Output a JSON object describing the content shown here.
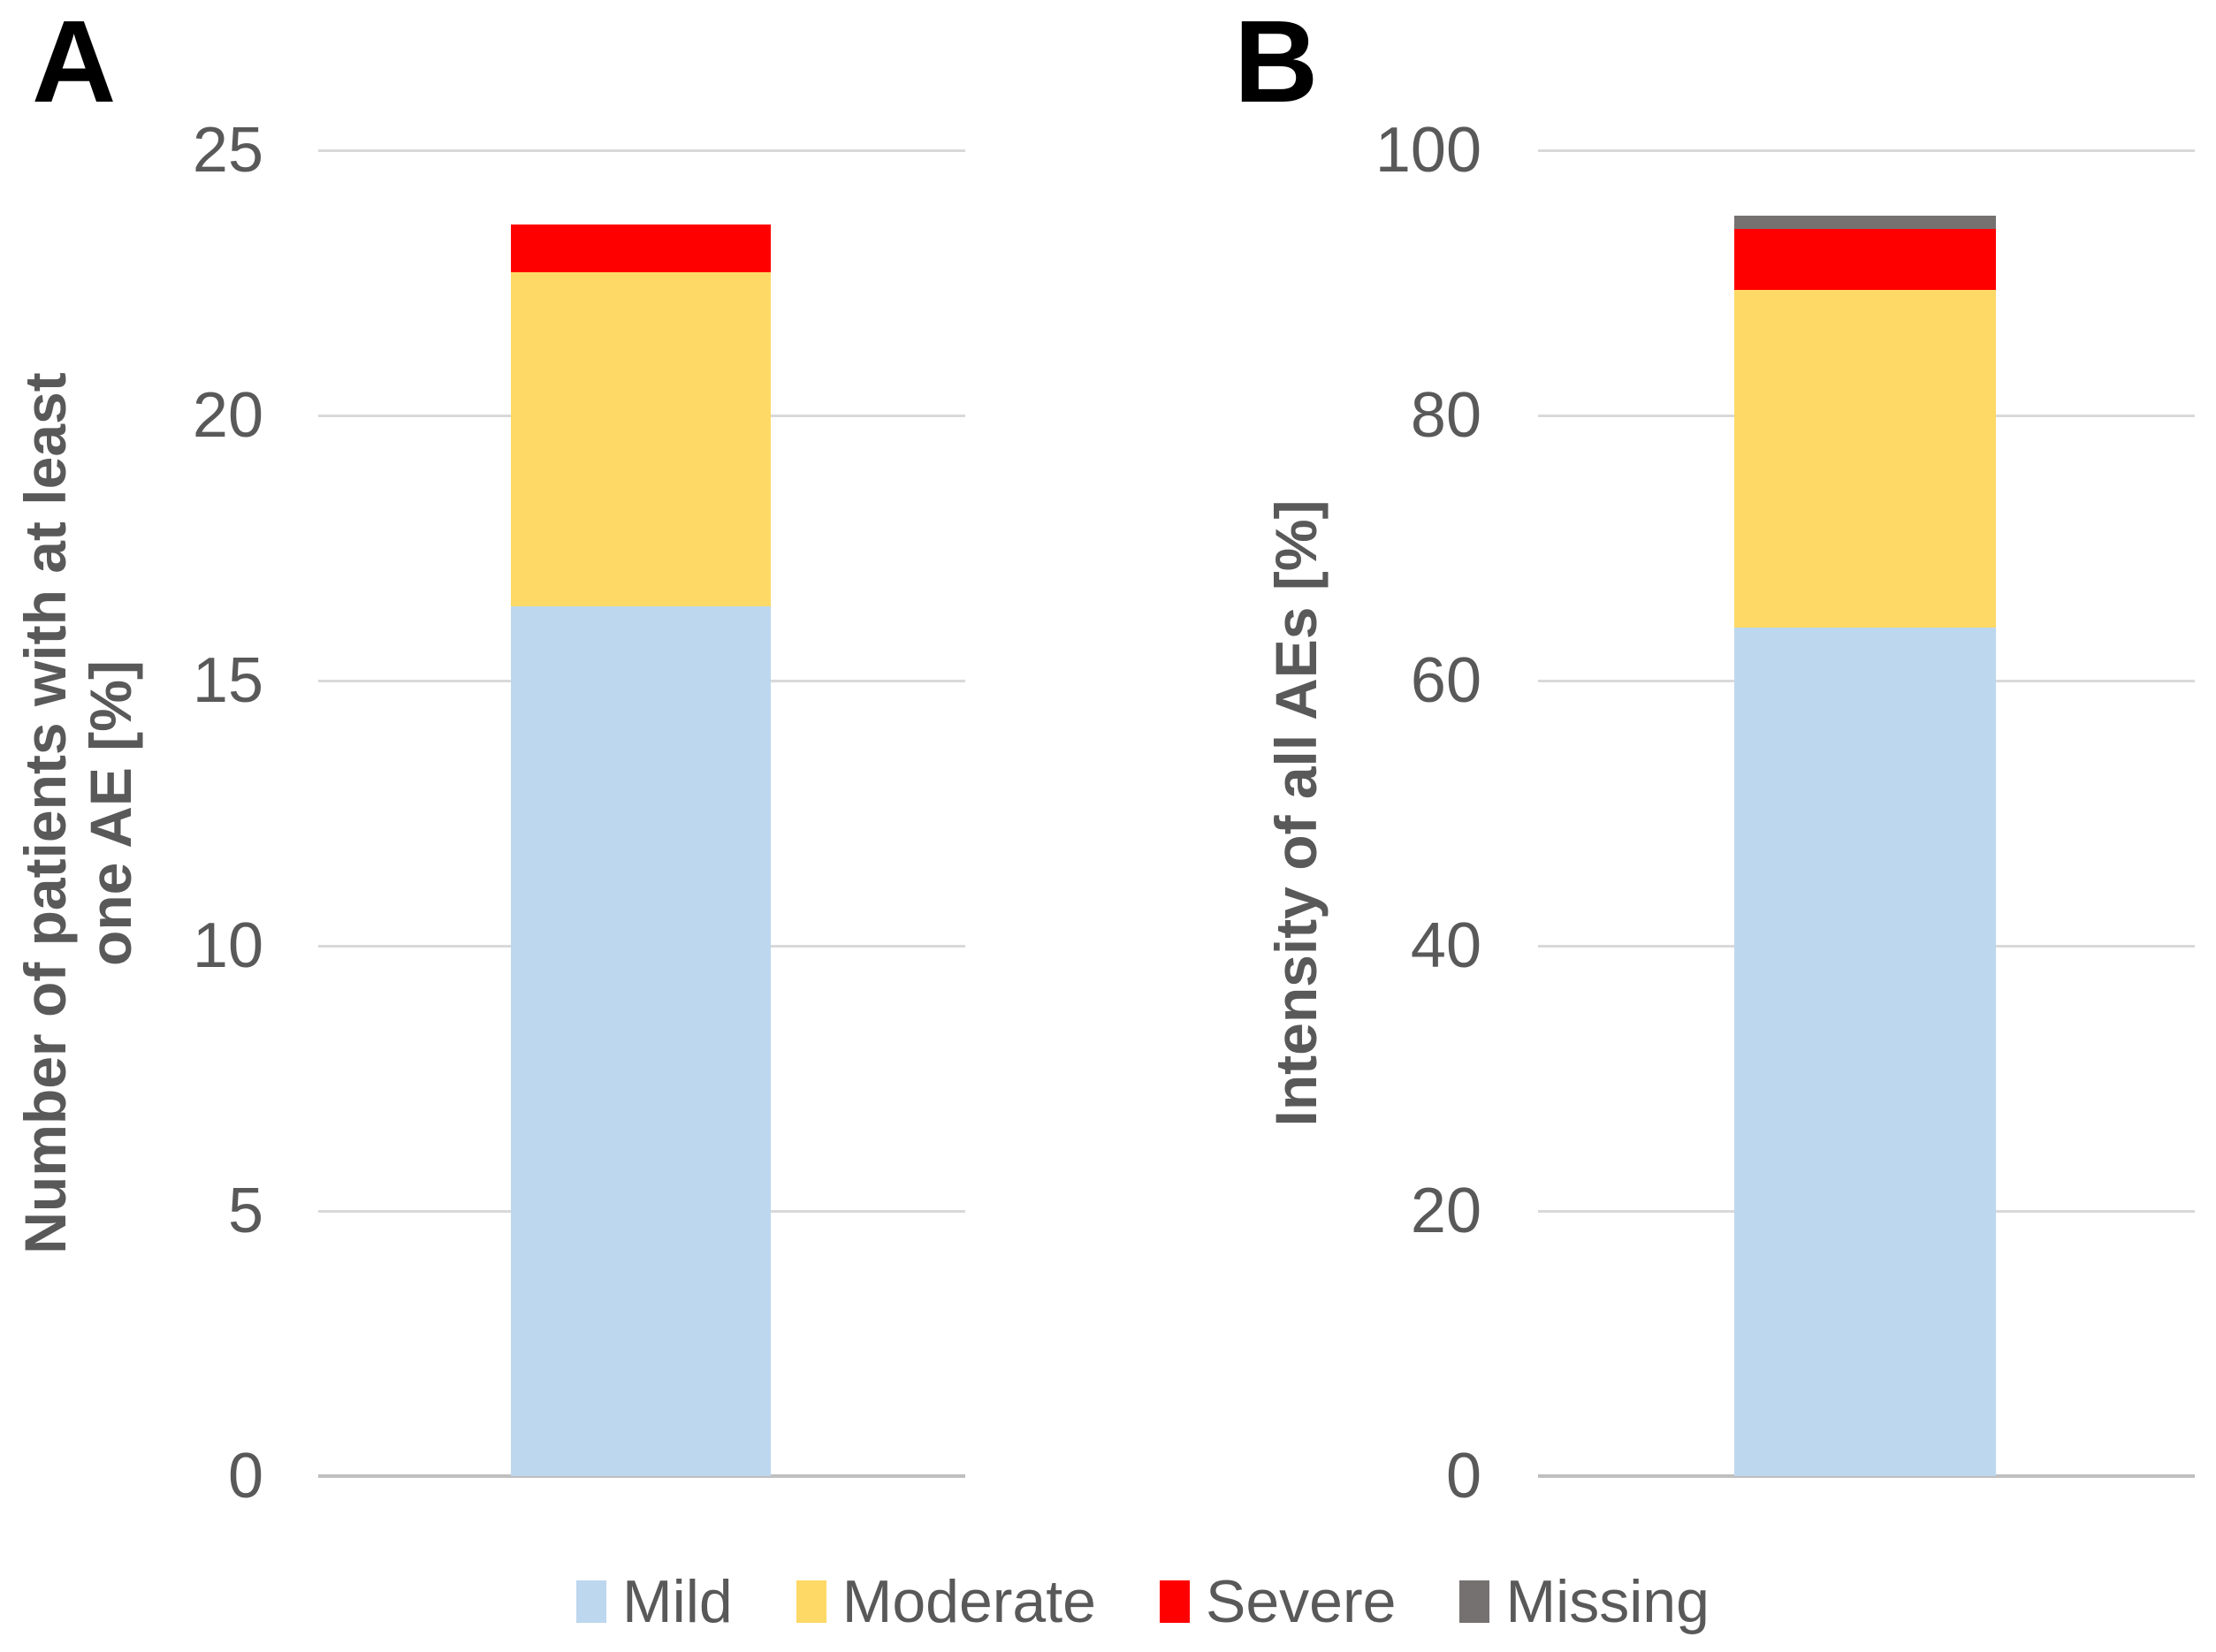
{
  "colors": {
    "mild": "#BDD7EE",
    "moderate": "#FFD966",
    "severe": "#FF0000",
    "missing": "#767171",
    "axis_text": "#595959",
    "gridline": "#D9D9D9",
    "axis_line": "#BFBFBF",
    "panel_letter": "#000000"
  },
  "legend": [
    {
      "label": "Mild",
      "color": "#BDD7EE"
    },
    {
      "label": "Moderate",
      "color": "#FFD966"
    },
    {
      "label": "Severe",
      "color": "#FF0000"
    },
    {
      "label": "Missing",
      "color": "#767171"
    }
  ],
  "chart_data": [
    {
      "type": "bar",
      "stacked": true,
      "title": "A",
      "ylabel": "Number of patients with at least one AE [%]",
      "ylabel_lines": [
        "Number of patients with at least",
        "one AE [%]"
      ],
      "xlabel": "",
      "ylim": [
        0,
        25
      ],
      "yticks": [
        0,
        5,
        10,
        15,
        20,
        25
      ],
      "grid": true,
      "legend_position": "bottom",
      "categories": [
        ""
      ],
      "series": [
        {
          "name": "Mild",
          "values": [
            16.4
          ],
          "color": "#BDD7EE"
        },
        {
          "name": "Moderate",
          "values": [
            6.3
          ],
          "color": "#FFD966"
        },
        {
          "name": "Severe",
          "values": [
            0.9
          ],
          "color": "#FF0000"
        }
      ],
      "bar_total": 23.6
    },
    {
      "type": "bar",
      "stacked": true,
      "title": "B",
      "ylabel": "Intensity of all AEs [%]",
      "ylabel_lines": [
        "Intensity of all AEs [%]"
      ],
      "xlabel": "",
      "ylim": [
        0,
        100
      ],
      "yticks": [
        0,
        20,
        40,
        60,
        80,
        100
      ],
      "grid": true,
      "legend_position": "bottom",
      "categories": [
        ""
      ],
      "series": [
        {
          "name": "Mild",
          "values": [
            64.0
          ],
          "color": "#BDD7EE"
        },
        {
          "name": "Moderate",
          "values": [
            25.5
          ],
          "color": "#FFD966"
        },
        {
          "name": "Severe",
          "values": [
            4.6
          ],
          "color": "#FF0000"
        },
        {
          "name": "Missing",
          "values": [
            1.0
          ],
          "color": "#767171"
        }
      ],
      "bar_total": 95.1
    }
  ]
}
